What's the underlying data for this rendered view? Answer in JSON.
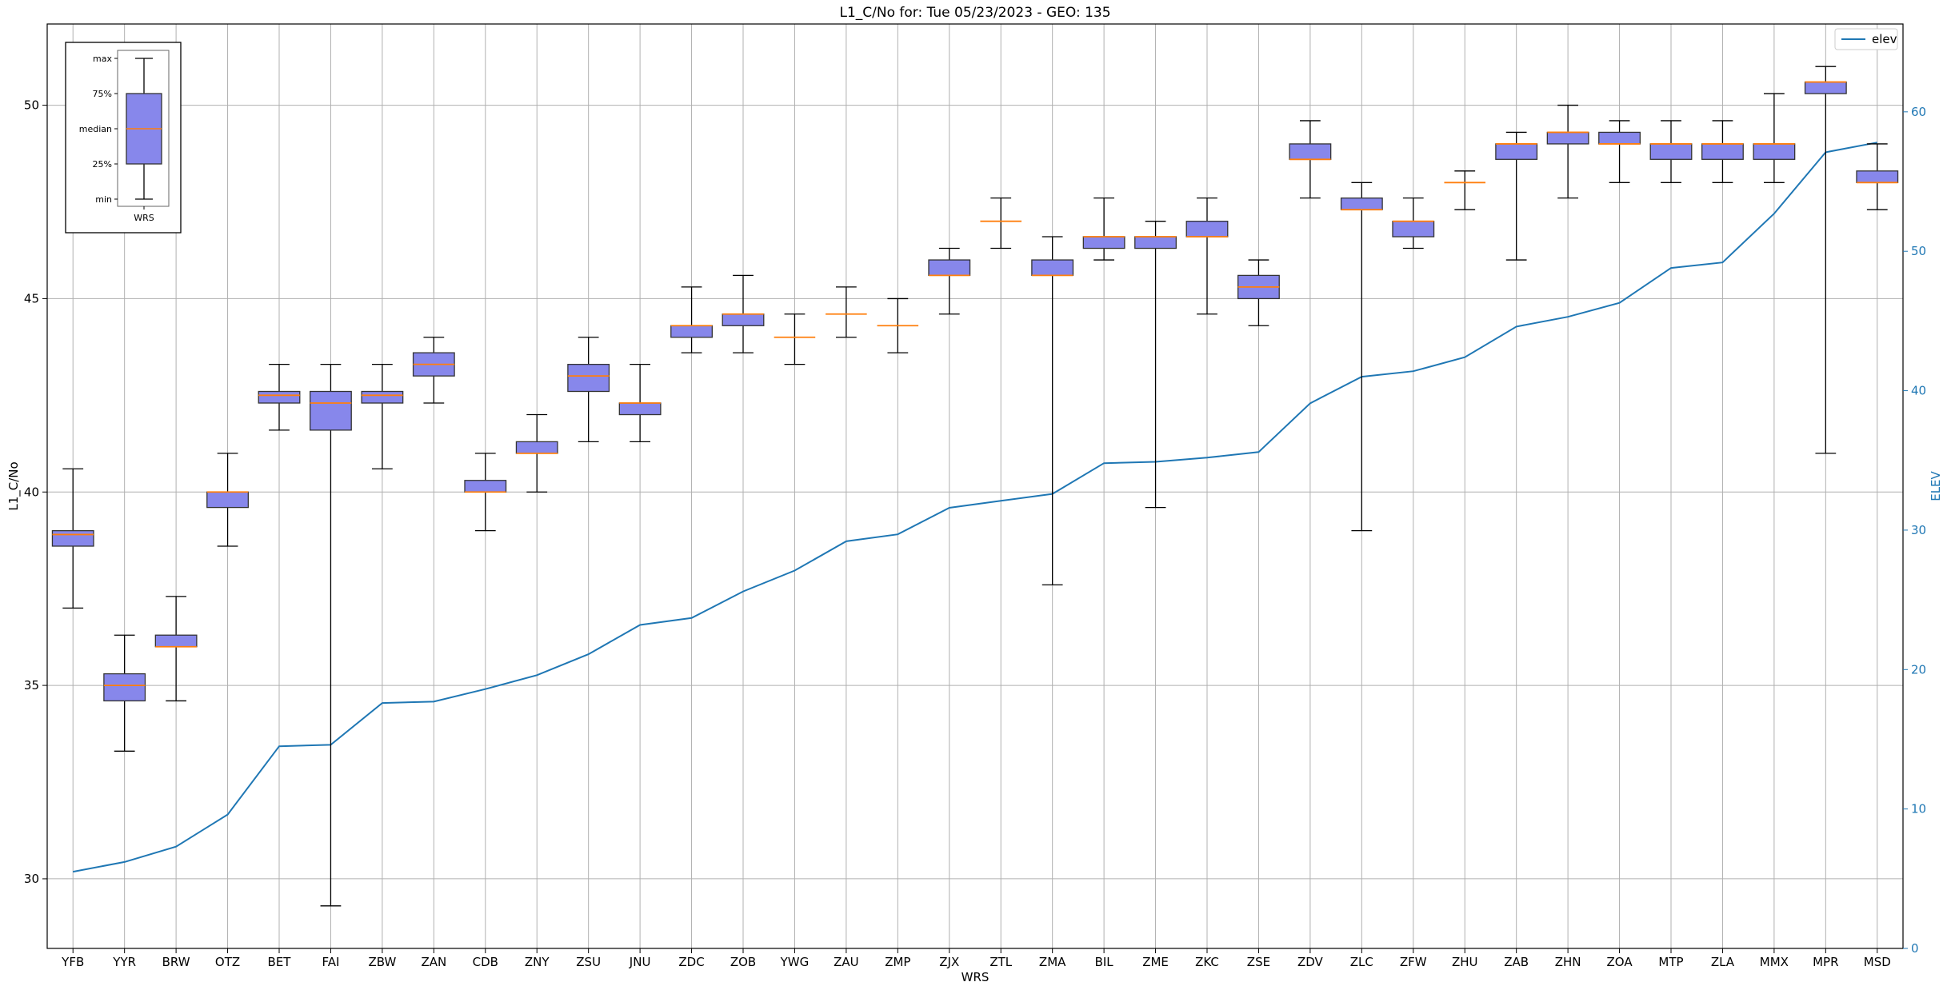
{
  "chart_data": {
    "type": "box",
    "title": "L1_C/No for: Tue 05/23/2023 - GEO: 135",
    "xlabel": "WRS",
    "ylabel": "L1_C/No",
    "y2label": "ELEV",
    "ylim": [
      28.2,
      52.1
    ],
    "y2lim": [
      0,
      66.3
    ],
    "yticks": [
      30,
      35,
      40,
      45,
      50
    ],
    "y2ticks": [
      0,
      10,
      20,
      30,
      40,
      50,
      60
    ],
    "grid": true,
    "legend": {
      "position": "top-right",
      "entries": [
        {
          "name": "elev",
          "color": "#1f77b4"
        }
      ]
    },
    "box_color": "#8787eb",
    "median_color": "#ff7f0e",
    "line_color": "#1f77b4",
    "categories": [
      "YFB",
      "YYR",
      "BRW",
      "OTZ",
      "BET",
      "FAI",
      "ZBW",
      "ZAN",
      "CDB",
      "ZNY",
      "ZSU",
      "JNU",
      "ZDC",
      "ZOB",
      "YWG",
      "ZAU",
      "ZMP",
      "ZJX",
      "ZTL",
      "ZMA",
      "BIL",
      "ZME",
      "ZKC",
      "ZSE",
      "ZDV",
      "ZLC",
      "ZFW",
      "ZHU",
      "ZAB",
      "ZHN",
      "ZOA",
      "MTP",
      "ZLA",
      "MMX",
      "MPR",
      "MSD"
    ],
    "boxes": [
      {
        "min": 37.0,
        "q1": 38.6,
        "median": 38.9,
        "q3": 39.0,
        "max": 40.6
      },
      {
        "min": 33.3,
        "q1": 34.6,
        "median": 35.0,
        "q3": 35.3,
        "max": 36.3
      },
      {
        "min": 34.6,
        "q1": 36.0,
        "median": 36.0,
        "q3": 36.3,
        "max": 37.3
      },
      {
        "min": 38.6,
        "q1": 39.6,
        "median": 40.0,
        "q3": 40.0,
        "max": 41.0
      },
      {
        "min": 41.6,
        "q1": 42.3,
        "median": 42.5,
        "q3": 42.6,
        "max": 43.3
      },
      {
        "min": 29.3,
        "q1": 41.6,
        "median": 42.3,
        "q3": 42.6,
        "max": 43.3
      },
      {
        "min": 40.6,
        "q1": 42.3,
        "median": 42.5,
        "q3": 42.6,
        "max": 43.3
      },
      {
        "min": 42.3,
        "q1": 43.0,
        "median": 43.3,
        "q3": 43.6,
        "max": 44.0
      },
      {
        "min": 39.0,
        "q1": 40.0,
        "median": 40.0,
        "q3": 40.3,
        "max": 41.0
      },
      {
        "min": 40.0,
        "q1": 41.0,
        "median": 41.0,
        "q3": 41.3,
        "max": 42.0
      },
      {
        "min": 41.3,
        "q1": 42.6,
        "median": 43.0,
        "q3": 43.3,
        "max": 44.0
      },
      {
        "min": 41.3,
        "q1": 42.0,
        "median": 42.3,
        "q3": 42.3,
        "max": 43.3
      },
      {
        "min": 43.6,
        "q1": 44.0,
        "median": 44.3,
        "q3": 44.3,
        "max": 45.3
      },
      {
        "min": 43.6,
        "q1": 44.3,
        "median": 44.6,
        "q3": 44.6,
        "max": 45.6
      },
      {
        "min": 43.3,
        "q1": 44.0,
        "median": 44.0,
        "q3": 44.0,
        "max": 44.6
      },
      {
        "min": 44.0,
        "q1": 44.6,
        "median": 44.6,
        "q3": 44.6,
        "max": 45.3
      },
      {
        "min": 43.6,
        "q1": 44.3,
        "median": 44.3,
        "q3": 44.3,
        "max": 45.0
      },
      {
        "min": 44.6,
        "q1": 45.6,
        "median": 45.6,
        "q3": 46.0,
        "max": 46.3
      },
      {
        "min": 46.3,
        "q1": 47.0,
        "median": 47.0,
        "q3": 47.0,
        "max": 47.6
      },
      {
        "min": 37.6,
        "q1": 45.6,
        "median": 45.6,
        "q3": 46.0,
        "max": 46.6
      },
      {
        "min": 46.0,
        "q1": 46.3,
        "median": 46.6,
        "q3": 46.6,
        "max": 47.6
      },
      {
        "min": 39.6,
        "q1": 46.3,
        "median": 46.6,
        "q3": 46.6,
        "max": 47.0
      },
      {
        "min": 44.6,
        "q1": 46.6,
        "median": 46.6,
        "q3": 47.0,
        "max": 47.6
      },
      {
        "min": 44.3,
        "q1": 45.0,
        "median": 45.3,
        "q3": 45.6,
        "max": 46.0
      },
      {
        "min": 47.6,
        "q1": 48.6,
        "median": 48.6,
        "q3": 49.0,
        "max": 49.6
      },
      {
        "min": 39.0,
        "q1": 47.3,
        "median": 47.3,
        "q3": 47.6,
        "max": 48.0
      },
      {
        "min": 46.3,
        "q1": 46.6,
        "median": 47.0,
        "q3": 47.0,
        "max": 47.6
      },
      {
        "min": 47.3,
        "q1": 48.0,
        "median": 48.0,
        "q3": 48.0,
        "max": 48.3
      },
      {
        "min": 46.0,
        "q1": 48.6,
        "median": 49.0,
        "q3": 49.0,
        "max": 49.3
      },
      {
        "min": 47.6,
        "q1": 49.0,
        "median": 49.3,
        "q3": 49.3,
        "max": 50.0
      },
      {
        "min": 48.0,
        "q1": 49.0,
        "median": 49.0,
        "q3": 49.3,
        "max": 49.6
      },
      {
        "min": 48.0,
        "q1": 48.6,
        "median": 49.0,
        "q3": 49.0,
        "max": 49.6
      },
      {
        "min": 48.0,
        "q1": 48.6,
        "median": 49.0,
        "q3": 49.0,
        "max": 49.6
      },
      {
        "min": 48.0,
        "q1": 48.6,
        "median": 49.0,
        "q3": 49.0,
        "max": 50.3
      },
      {
        "min": 41.0,
        "q1": 50.3,
        "median": 50.6,
        "q3": 50.6,
        "max": 51.0
      },
      {
        "min": 47.3,
        "q1": 48.0,
        "median": 48.0,
        "q3": 48.3,
        "max": 49.0
      }
    ],
    "series": [
      {
        "name": "elev",
        "axis": "right",
        "values": [
          5.5,
          6.2,
          7.3,
          9.6,
          14.5,
          14.6,
          17.6,
          17.7,
          18.6,
          19.6,
          21.1,
          23.2,
          23.7,
          25.6,
          27.1,
          29.2,
          29.7,
          31.6,
          32.1,
          32.6,
          34.8,
          34.9,
          35.2,
          35.6,
          39.1,
          41.0,
          41.4,
          42.4,
          44.6,
          45.3,
          46.3,
          48.8,
          49.2,
          52.7,
          57.1,
          57.8
        ]
      }
    ],
    "key": {
      "labels": [
        "max",
        "75%",
        "median",
        "25%",
        "min"
      ],
      "xlabel": "WRS"
    }
  }
}
